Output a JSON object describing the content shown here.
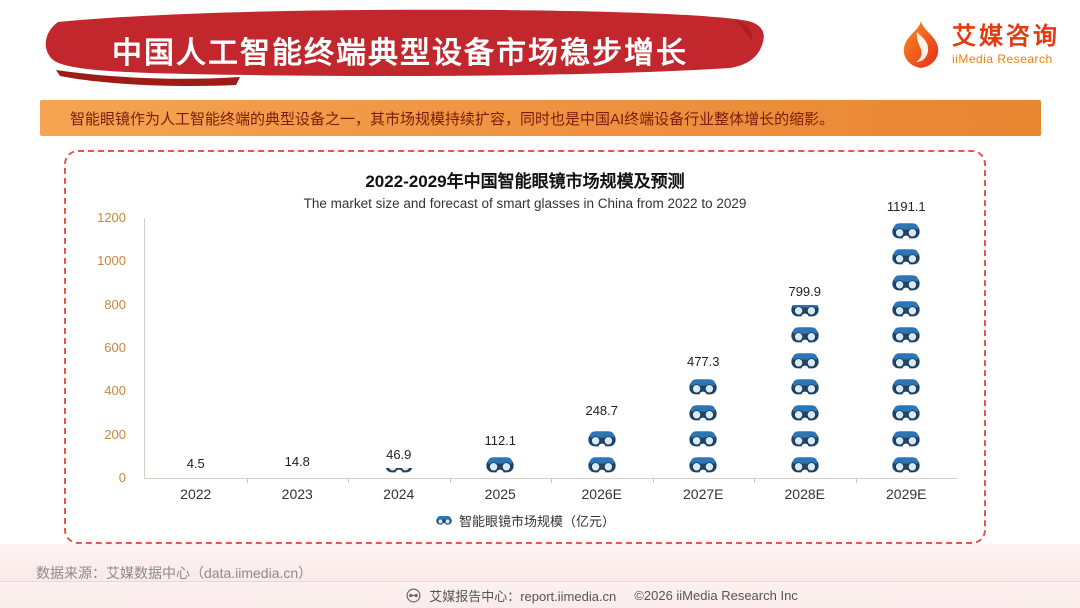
{
  "header": {
    "title": "中国人工智能终端典型设备市场稳步增长",
    "logo": {
      "brand_cn": "艾媒咨询",
      "brand_en": "iiMedia Research"
    }
  },
  "highlight": {
    "text": "智能眼镜作为人工智能终端的典型设备之一，其市场规模持续扩容，同时也是中国AI终端设备行业整体增长的缩影。"
  },
  "chart_data": {
    "type": "bar",
    "subtype": "pictogram-stack",
    "title": "2022-2029年中国智能眼镜市场规模及预测",
    "subtitle": "The market size and forecast of smart glasses in China from 2022 to 2029",
    "categories": [
      "2022",
      "2023",
      "2024",
      "2025",
      "2026E",
      "2027E",
      "2028E",
      "2029E"
    ],
    "values": [
      4.5,
      14.8,
      46.9,
      112.1,
      248.7,
      477.3,
      799.9,
      1191.1
    ],
    "ylim": [
      0,
      1200
    ],
    "yticks": [
      0,
      200,
      400,
      600,
      800,
      1000,
      1200
    ],
    "unit_per_icon": 120,
    "legend": "智能眼镜市场规模（亿元）",
    "grid": false,
    "legend_position": "bottom-center"
  },
  "footer": {
    "source": "数据来源：艾媒数据中心（data.iimedia.cn）",
    "report_center": "艾媒报告中心：report.iimedia.cn",
    "copyright": "©2026  iiMedia Research  Inc"
  },
  "colors": {
    "banner_red": "#c1272d",
    "banner_shadow_red": "#9e1c16",
    "highlight_orange": "#ef9140",
    "highlight_text": "#7a1c0a",
    "frame_dash_red": "#e2574b",
    "axis_label_orange": "#c8873c",
    "pictogram_navy": "#1d4568",
    "pictogram_light_blue": "#2e75b6",
    "logo_red": "#e8380d",
    "logo_orange": "#f08307"
  }
}
